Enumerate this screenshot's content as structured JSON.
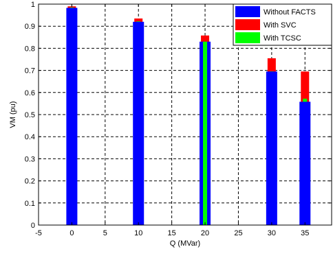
{
  "chart_data": {
    "type": "bar",
    "xlabel": "Q (MVar)",
    "ylabel": "VM (pu)",
    "xlim": [
      -5,
      39
    ],
    "ylim": [
      0,
      1
    ],
    "xticks": [
      "-5",
      "0",
      "5",
      "10",
      "15",
      "20",
      "25",
      "30",
      "35"
    ],
    "yticks": [
      "0",
      "0.1",
      "0.2",
      "0.3",
      "0.4",
      "0.5",
      "0.6",
      "0.7",
      "0.8",
      "0.9",
      "1"
    ],
    "grid": true,
    "legend_position": "top-right",
    "x": [
      0,
      10,
      20,
      30,
      35
    ],
    "series": [
      {
        "name": "Without FACTS",
        "color": "#0000ff",
        "values": [
          0.983,
          0.92,
          0.83,
          0.695,
          0.558
        ]
      },
      {
        "name": "With SVC",
        "color": "#ff0000",
        "values": [
          0.99,
          0.935,
          0.858,
          0.755,
          0.695
        ]
      },
      {
        "name": "With TCSC",
        "color": "#00ff00",
        "values": [
          0.985,
          0.922,
          0.83,
          0.696,
          0.572
        ]
      }
    ]
  }
}
